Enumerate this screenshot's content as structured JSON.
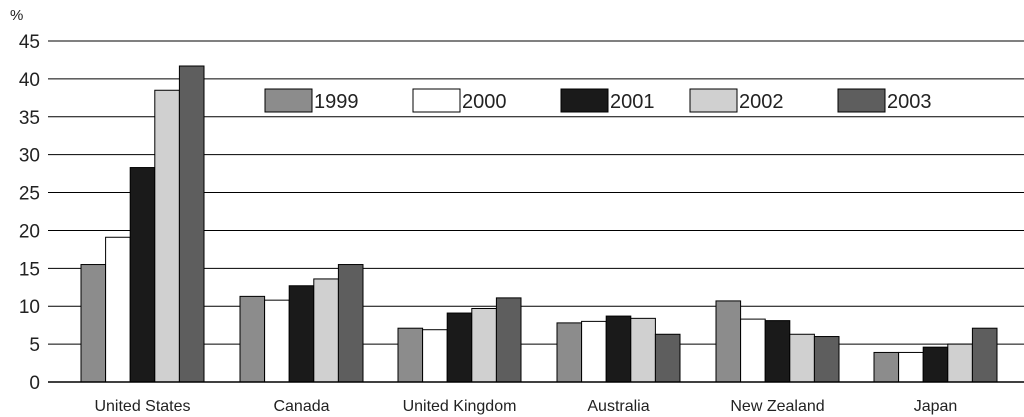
{
  "chart_data": {
    "type": "bar",
    "ylabel": "%",
    "ylim": [
      0,
      45
    ],
    "yticks": [
      0,
      5,
      10,
      15,
      20,
      25,
      30,
      35,
      40,
      45
    ],
    "grid": true,
    "legend_position": "top",
    "categories": [
      "United States",
      "Canada",
      "United Kingdom",
      "Australia",
      "New Zealand",
      "Japan"
    ],
    "series": [
      {
        "name": "1999",
        "color": "#8c8c8c",
        "values": [
          15.5,
          11.3,
          7.1,
          7.8,
          10.7,
          3.9
        ]
      },
      {
        "name": "2000",
        "color": "#ffffff",
        "values": [
          19.1,
          10.8,
          6.9,
          8.0,
          8.3,
          3.9
        ]
      },
      {
        "name": "2001",
        "color": "#1a1a1a",
        "values": [
          28.3,
          12.7,
          9.1,
          8.7,
          8.1,
          4.6
        ]
      },
      {
        "name": "2002",
        "color": "#d0d0d0",
        "values": [
          38.5,
          13.6,
          9.7,
          8.4,
          6.3,
          5.0
        ]
      },
      {
        "name": "2003",
        "color": "#5e5e5e",
        "values": [
          41.7,
          15.5,
          11.1,
          6.3,
          6.0,
          7.1
        ]
      }
    ]
  }
}
